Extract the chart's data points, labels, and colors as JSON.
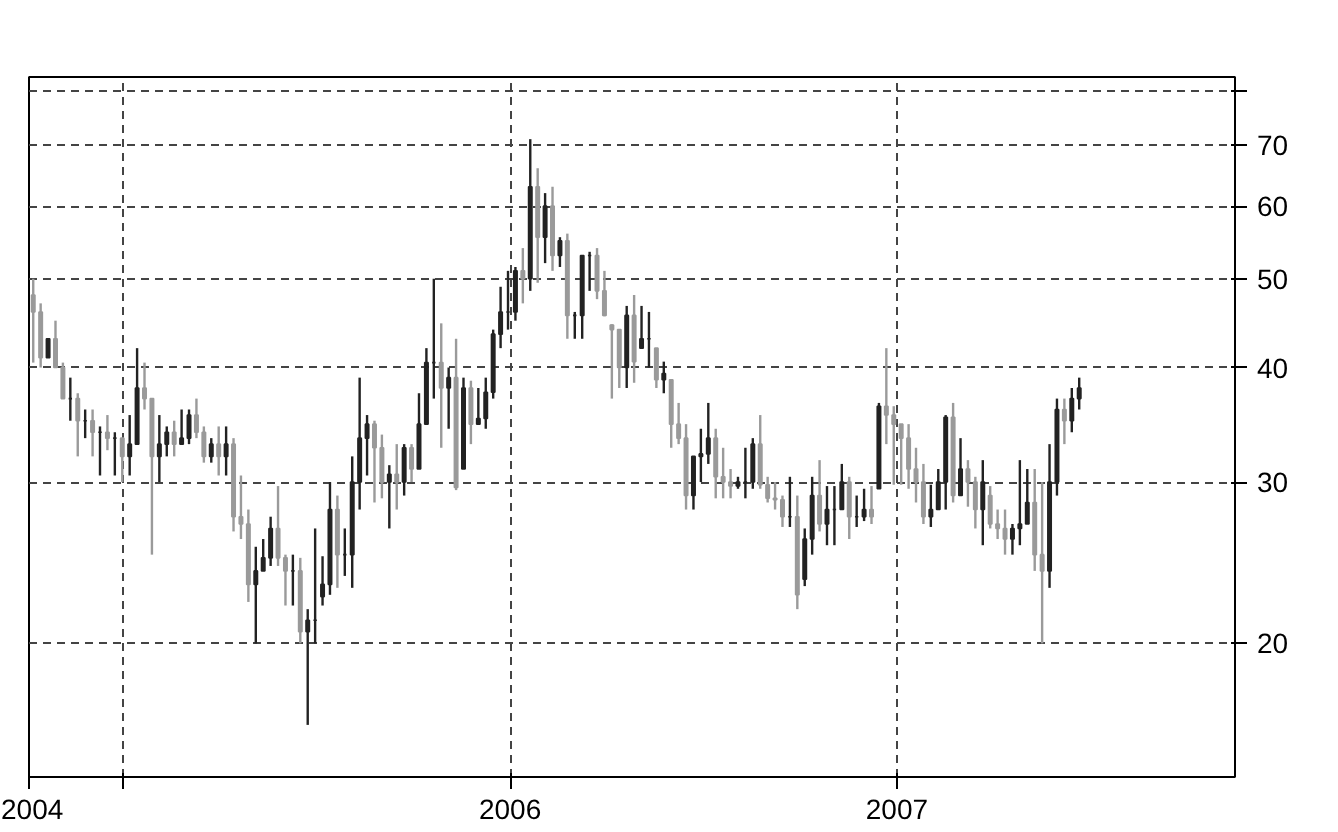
{
  "chart_data": {
    "type": "candlestick",
    "x": [
      "2004-10-08",
      "2004-10-15",
      "2004-10-22",
      "2004-10-29",
      "2004-11-05",
      "2004-11-12",
      "2004-11-19",
      "2004-11-26",
      "2004-12-03",
      "2004-12-10",
      "2004-12-17",
      "2004-12-24",
      "2004-12-31",
      "2005-01-07",
      "2005-01-14",
      "2005-01-21",
      "2005-01-28",
      "2005-02-04",
      "2005-02-11",
      "2005-02-18",
      "2005-02-25",
      "2005-03-04",
      "2005-03-11",
      "2005-03-18",
      "2005-03-25",
      "2005-04-01",
      "2005-04-08",
      "2005-04-15",
      "2005-04-22",
      "2005-04-29",
      "2005-05-06",
      "2005-05-13",
      "2005-05-20",
      "2005-05-27",
      "2005-06-03",
      "2005-06-10",
      "2005-06-17",
      "2005-06-24",
      "2005-07-01",
      "2005-07-08",
      "2005-07-15",
      "2005-07-22",
      "2005-07-29",
      "2005-08-05",
      "2005-08-12",
      "2005-08-19",
      "2005-08-26",
      "2005-09-02",
      "2005-09-09",
      "2005-09-16",
      "2005-09-23",
      "2005-09-30",
      "2005-10-07",
      "2005-10-14",
      "2005-10-21",
      "2005-10-28",
      "2005-11-04",
      "2005-11-11",
      "2005-11-18",
      "2005-11-25",
      "2005-12-02",
      "2005-12-09",
      "2005-12-16",
      "2005-12-23",
      "2005-12-30",
      "2006-01-06",
      "2006-01-13",
      "2006-01-20",
      "2006-01-27",
      "2006-02-03",
      "2006-02-10",
      "2006-02-17",
      "2006-02-24",
      "2006-03-03",
      "2006-03-10",
      "2006-03-17",
      "2006-03-24",
      "2006-03-31",
      "2006-04-07",
      "2006-04-14",
      "2006-04-21",
      "2006-04-28",
      "2006-05-05",
      "2006-05-12",
      "2006-05-19",
      "2006-05-26",
      "2006-06-02",
      "2006-06-09",
      "2006-06-16",
      "2006-06-23",
      "2006-06-30",
      "2006-07-07",
      "2006-07-14",
      "2006-07-21",
      "2006-07-28",
      "2006-08-04",
      "2006-08-11",
      "2006-08-18",
      "2006-08-25",
      "2006-09-01",
      "2006-09-08",
      "2006-09-15",
      "2006-09-22",
      "2006-09-29",
      "2006-10-06",
      "2006-10-13",
      "2006-10-20",
      "2006-10-27",
      "2006-11-03",
      "2006-11-10",
      "2006-11-17",
      "2006-11-24",
      "2006-12-01",
      "2006-12-08",
      "2006-12-15",
      "2006-12-22",
      "2006-12-29",
      "2007-01-05",
      "2007-01-12",
      "2007-01-19",
      "2007-01-26",
      "2007-02-02",
      "2007-02-09",
      "2007-02-16",
      "2007-02-23",
      "2007-03-02",
      "2007-03-09",
      "2007-03-16",
      "2007-03-23",
      "2007-03-30",
      "2007-04-06",
      "2007-04-13",
      "2007-04-20",
      "2007-04-27",
      "2007-05-04",
      "2007-05-11",
      "2007-05-18",
      "2007-05-25",
      "2007-06-01",
      "2007-06-08",
      "2007-06-15",
      "2007-06-22"
    ],
    "ohlc": [
      [
        48,
        50,
        40.5,
        46
      ],
      [
        46,
        47,
        40,
        41
      ],
      [
        41,
        43,
        41,
        43
      ],
      [
        43,
        45,
        40,
        40
      ],
      [
        40,
        40.5,
        37,
        37
      ],
      [
        37,
        39,
        35,
        37
      ],
      [
        37,
        37.5,
        32,
        35
      ],
      [
        35,
        36,
        33.5,
        35
      ],
      [
        35,
        36,
        32,
        34
      ],
      [
        34,
        34.5,
        30.5,
        34
      ],
      [
        34,
        35.5,
        32.5,
        33.5
      ],
      [
        33.5,
        34,
        30.5,
        33.5
      ],
      [
        33.5,
        33.5,
        30,
        32
      ],
      [
        32,
        35.5,
        30.5,
        33
      ],
      [
        33,
        42,
        33,
        38
      ],
      [
        38,
        40.5,
        36,
        37
      ],
      [
        37,
        37,
        25,
        32
      ],
      [
        32,
        35.5,
        30,
        33
      ],
      [
        33,
        34.5,
        32,
        34
      ],
      [
        34,
        35,
        32,
        33
      ],
      [
        33,
        36,
        33,
        33.5
      ],
      [
        33.5,
        36,
        33,
        35.5
      ],
      [
        35.5,
        37,
        33.5,
        34
      ],
      [
        34,
        34.5,
        31.5,
        32
      ],
      [
        32,
        33.5,
        31.5,
        33
      ],
      [
        33,
        34.5,
        30.5,
        32
      ],
      [
        32,
        34.5,
        30.5,
        33
      ],
      [
        33,
        33.5,
        26.5,
        27.5
      ],
      [
        27.5,
        30.5,
        26,
        27
      ],
      [
        27,
        28,
        22.2,
        23.2
      ],
      [
        23.2,
        25.5,
        20,
        24
      ],
      [
        24,
        26,
        24,
        24.8
      ],
      [
        24.8,
        27.5,
        24.3,
        26.7
      ],
      [
        26.7,
        29.7,
        24.3,
        24.8
      ],
      [
        24.8,
        25,
        22,
        24
      ],
      [
        24,
        25,
        22,
        24
      ],
      [
        24,
        24.8,
        20,
        20.6
      ],
      [
        20.6,
        21.8,
        16.3,
        21.2
      ],
      [
        21.2,
        26.7,
        20,
        21.2
      ],
      [
        22.5,
        24.9,
        22,
        23.2
      ],
      [
        23.2,
        30,
        22.6,
        28
      ],
      [
        28,
        29,
        23,
        25
      ],
      [
        25,
        26.7,
        23.7,
        25
      ],
      [
        25,
        32,
        23,
        30
      ],
      [
        30,
        39,
        28,
        33.5
      ],
      [
        33.5,
        35.5,
        30.5,
        34.7
      ],
      [
        34.7,
        35,
        28.5,
        32.7
      ],
      [
        32.7,
        33.8,
        28.8,
        30
      ],
      [
        30,
        31.3,
        26.7,
        30.6
      ],
      [
        30.6,
        33,
        28,
        30
      ],
      [
        30,
        33,
        29,
        32.7
      ],
      [
        32.7,
        33,
        30,
        31
      ],
      [
        31,
        37.5,
        31,
        34.7
      ],
      [
        34.7,
        42,
        34.7,
        40.5
      ],
      [
        40.5,
        50,
        37,
        40.5
      ],
      [
        40.5,
        44.7,
        32.7,
        38
      ],
      [
        38,
        40,
        34.3,
        39
      ],
      [
        39,
        43,
        29.4,
        29.6
      ],
      [
        31,
        39,
        31,
        38
      ],
      [
        38,
        38.7,
        33,
        34.7
      ],
      [
        34.7,
        38,
        34.7,
        35.2
      ],
      [
        35.2,
        39,
        34.3,
        37.6
      ],
      [
        37.6,
        44,
        37,
        43.5
      ],
      [
        43.5,
        49,
        42,
        46
      ],
      [
        46,
        51,
        44,
        46
      ],
      [
        46,
        51.5,
        45,
        51
      ],
      [
        51,
        54,
        47,
        50
      ],
      [
        50,
        71,
        48.5,
        63
      ],
      [
        63,
        66,
        49.5,
        55.5
      ],
      [
        55.5,
        62,
        52,
        60
      ],
      [
        60,
        63,
        51,
        53
      ],
      [
        53,
        55.5,
        51.5,
        55
      ],
      [
        55,
        56,
        43,
        45.6
      ],
      [
        45.6,
        46,
        43,
        45.6
      ],
      [
        45.6,
        53,
        43,
        53
      ],
      [
        53,
        53.5,
        48.5,
        53
      ],
      [
        53,
        54,
        47.5,
        48.5
      ],
      [
        48.5,
        51,
        45.5,
        45.6
      ],
      [
        44.5,
        44.6,
        37,
        44
      ],
      [
        44,
        44,
        38,
        40
      ],
      [
        40,
        46.7,
        38,
        45.6
      ],
      [
        45.6,
        48,
        38.5,
        40.6
      ],
      [
        42,
        46.7,
        42,
        43
      ],
      [
        43,
        46,
        40,
        43
      ],
      [
        42,
        42,
        38,
        38.8
      ],
      [
        38.8,
        40.6,
        37.5,
        39.4
      ],
      [
        38.8,
        38.8,
        32.7,
        34.7
      ],
      [
        34.7,
        36.6,
        33,
        33.5
      ],
      [
        33.5,
        34.7,
        28,
        29
      ],
      [
        29,
        32,
        28,
        32
      ],
      [
        32,
        34.3,
        30,
        32.2
      ],
      [
        32.2,
        36.6,
        31.4,
        33.5
      ],
      [
        33.5,
        34.3,
        28.8,
        30.4
      ],
      [
        30.4,
        32.7,
        28.8,
        30
      ],
      [
        30,
        31,
        28.8,
        29.7
      ],
      [
        29.7,
        30.4,
        29.5,
        30
      ],
      [
        30,
        32.7,
        28.8,
        30
      ],
      [
        30,
        33.5,
        29.5,
        33
      ],
      [
        33,
        35.5,
        29.5,
        29.8
      ],
      [
        29.8,
        30.4,
        28.5,
        28.8
      ],
      [
        28.8,
        30,
        28,
        28.7
      ],
      [
        28.7,
        29,
        26.8,
        27.5
      ],
      [
        27.5,
        30.4,
        26.8,
        27.5
      ],
      [
        27.5,
        29,
        21.8,
        22.6
      ],
      [
        23.5,
        26.7,
        23.1,
        26
      ],
      [
        26,
        30.4,
        25,
        29
      ],
      [
        29,
        31.7,
        26.5,
        27
      ],
      [
        27,
        29.7,
        25.6,
        28
      ],
      [
        28,
        29.7,
        25.6,
        28
      ],
      [
        28,
        31.4,
        28,
        30
      ],
      [
        30,
        30.4,
        26,
        27.5
      ],
      [
        27.5,
        29,
        26.8,
        27.5
      ],
      [
        27.5,
        29.5,
        27.2,
        28
      ],
      [
        28,
        29.7,
        27,
        27.5
      ],
      [
        29.5,
        36.6,
        29.5,
        36.3
      ],
      [
        36.3,
        42,
        33,
        35.5
      ],
      [
        35.5,
        36.3,
        29.8,
        34.7
      ],
      [
        34.7,
        34.7,
        29.8,
        33.5
      ],
      [
        33.5,
        34.7,
        29.5,
        31
      ],
      [
        31,
        32.7,
        28.5,
        30
      ],
      [
        30,
        31.4,
        27,
        27.5
      ],
      [
        27.5,
        29.8,
        26.8,
        28
      ],
      [
        28,
        31,
        28,
        30
      ],
      [
        30,
        35.5,
        28,
        35.3
      ],
      [
        35.3,
        36.6,
        28.5,
        29
      ],
      [
        29,
        33.5,
        29,
        31
      ],
      [
        31,
        31.7,
        28.2,
        30
      ],
      [
        30,
        30.4,
        26.7,
        28
      ],
      [
        28,
        31.7,
        25.6,
        30
      ],
      [
        29,
        29.7,
        26.7,
        27
      ],
      [
        27,
        28,
        26,
        26.7
      ],
      [
        26.7,
        28,
        25,
        26
      ],
      [
        26,
        27,
        25,
        26.7
      ],
      [
        26.7,
        31.7,
        25.6,
        27
      ],
      [
        27,
        31,
        27,
        28.5
      ],
      [
        28.5,
        31,
        24,
        25
      ],
      [
        25,
        30,
        20,
        24
      ],
      [
        24,
        33,
        23,
        30
      ],
      [
        30,
        37,
        29,
        36
      ],
      [
        36,
        37,
        33,
        35
      ],
      [
        35,
        38,
        34,
        37
      ],
      [
        37,
        39,
        36,
        38
      ]
    ],
    "colors": [
      "#9a9a9a",
      "#9a9a9a",
      "#222222",
      "#9a9a9a",
      "#9a9a9a",
      "#222222",
      "#9a9a9a",
      "#222222",
      "#9a9a9a",
      "#222222",
      "#9a9a9a",
      "#222222",
      "#9a9a9a",
      "#222222",
      "#222222",
      "#9a9a9a",
      "#9a9a9a",
      "#222222",
      "#222222",
      "#9a9a9a",
      "#222222",
      "#222222",
      "#9a9a9a",
      "#9a9a9a",
      "#222222",
      "#9a9a9a",
      "#222222",
      "#9a9a9a",
      "#9a9a9a",
      "#9a9a9a",
      "#222222",
      "#222222",
      "#222222",
      "#9a9a9a",
      "#9a9a9a",
      "#222222",
      "#9a9a9a",
      "#222222",
      "#222222",
      "#222222",
      "#222222",
      "#9a9a9a",
      "#222222",
      "#222222",
      "#222222",
      "#222222",
      "#9a9a9a",
      "#9a9a9a",
      "#222222",
      "#9a9a9a",
      "#222222",
      "#9a9a9a",
      "#222222",
      "#222222",
      "#222222",
      "#9a9a9a",
      "#222222",
      "#9a9a9a",
      "#222222",
      "#9a9a9a",
      "#222222",
      "#222222",
      "#222222",
      "#222222",
      "#222222",
      "#222222",
      "#9a9a9a",
      "#222222",
      "#9a9a9a",
      "#222222",
      "#9a9a9a",
      "#222222",
      "#9a9a9a",
      "#222222",
      "#222222",
      "#222222",
      "#9a9a9a",
      "#9a9a9a",
      "#9a9a9a",
      "#9a9a9a",
      "#222222",
      "#9a9a9a",
      "#222222",
      "#222222",
      "#9a9a9a",
      "#222222",
      "#9a9a9a",
      "#9a9a9a",
      "#9a9a9a",
      "#222222",
      "#222222",
      "#222222",
      "#9a9a9a",
      "#9a9a9a",
      "#9a9a9a",
      "#222222",
      "#222222",
      "#222222",
      "#9a9a9a",
      "#9a9a9a",
      "#9a9a9a",
      "#9a9a9a",
      "#222222",
      "#9a9a9a",
      "#222222",
      "#222222",
      "#9a9a9a",
      "#222222",
      "#222222",
      "#222222",
      "#9a9a9a",
      "#222222",
      "#222222",
      "#9a9a9a",
      "#222222",
      "#9a9a9a",
      "#9a9a9a",
      "#9a9a9a",
      "#9a9a9a",
      "#9a9a9a",
      "#9a9a9a",
      "#222222",
      "#222222",
      "#222222",
      "#9a9a9a",
      "#222222",
      "#9a9a9a",
      "#9a9a9a",
      "#222222",
      "#9a9a9a",
      "#9a9a9a",
      "#9a9a9a",
      "#222222",
      "#222222",
      "#222222",
      "#9a9a9a",
      "#9a9a9a",
      "#222222",
      "#222222",
      "#9a9a9a",
      "#222222",
      "#222222"
    ],
    "log": true,
    "ylim": [
      14.3,
      83
    ],
    "yticks": [
      {
        "value": 80,
        "label": null
      },
      70,
      60,
      50,
      40,
      30,
      20
    ],
    "xlim": [
      "2004-10-04",
      "2007-11-16"
    ],
    "xticks": [
      {
        "value": "2004-10-04",
        "label": "2004"
      },
      {
        "value": "2005-01-01",
        "label": null
      },
      {
        "value": "2006-01-01",
        "label": "2006"
      },
      {
        "value": "2007-01-01",
        "label": "2007"
      }
    ],
    "grid": true,
    "line_style": "dashed"
  }
}
